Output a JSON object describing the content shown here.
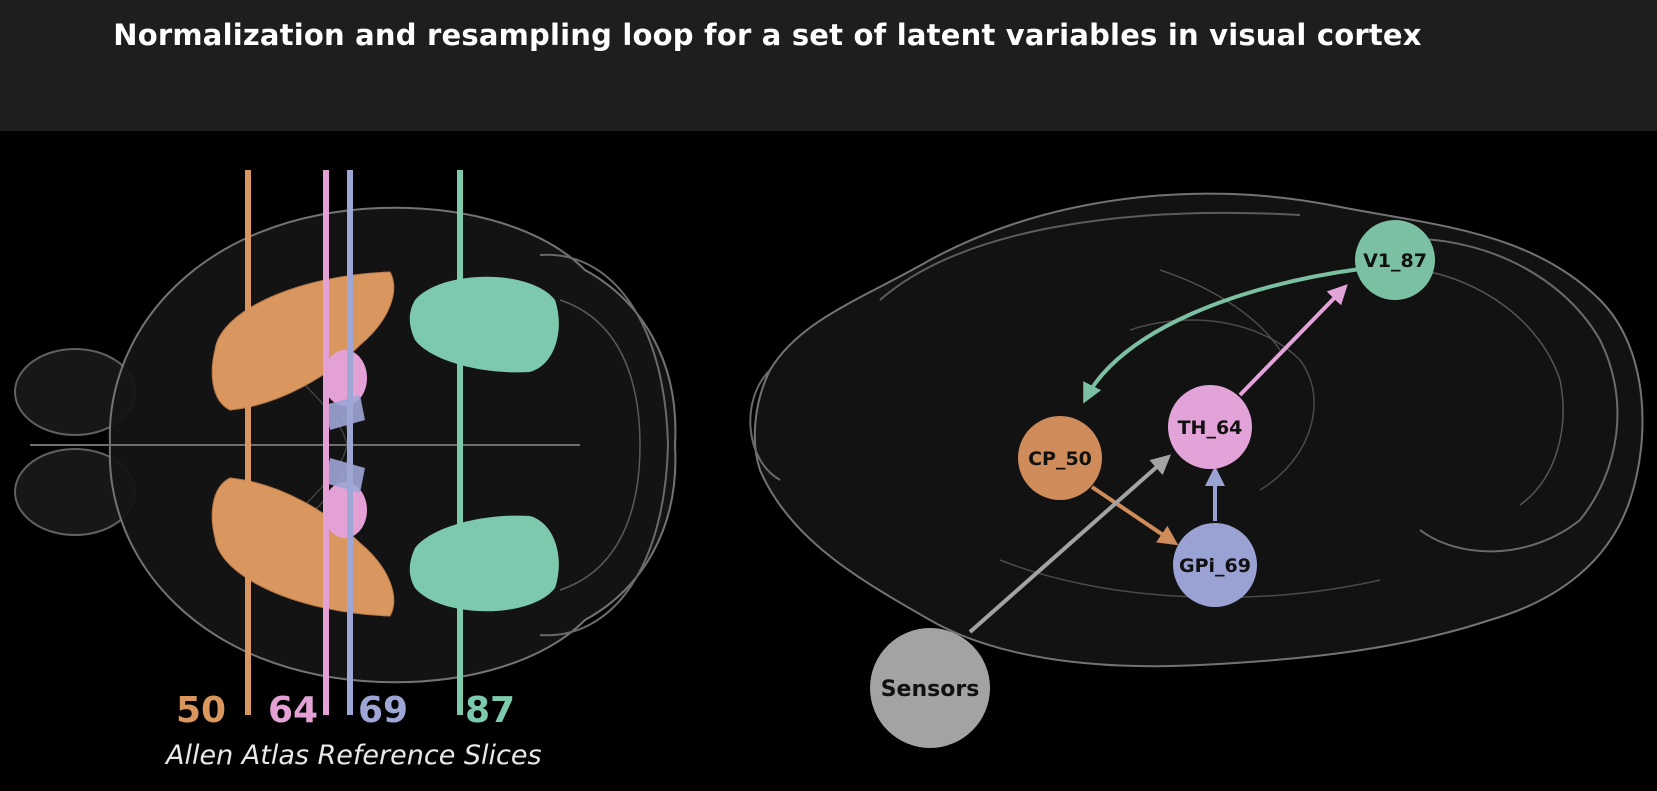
{
  "title": "Normalization and resampling loop for a set of latent variables in visual cortex",
  "caption": "Allen Atlas Reference Slices",
  "slices": [
    {
      "label": "50",
      "color": "#d9975f"
    },
    {
      "label": "64",
      "color": "#e3a1d6"
    },
    {
      "label": "69",
      "color": "#9ea6d6"
    },
    {
      "label": "87",
      "color": "#7cc9ae"
    }
  ],
  "nodes": {
    "v1": {
      "label": "V1_87",
      "color": "#7cc0a4"
    },
    "th": {
      "label": "TH_64",
      "color": "#e2a3d8"
    },
    "cp": {
      "label": "CP_50",
      "color": "#cf8c5a"
    },
    "gpi": {
      "label": "GPi_69",
      "color": "#9aa2d3"
    },
    "sensors": {
      "label": "Sensors",
      "color": "#a3a3a3"
    }
  },
  "edges": [
    {
      "from": "V1_87",
      "to": "CP_50",
      "color": "#7cc0a4"
    },
    {
      "from": "TH_64",
      "to": "V1_87",
      "color": "#e2a3d8"
    },
    {
      "from": "CP_50",
      "to": "GPi_69",
      "color": "#cf8c5a"
    },
    {
      "from": "GPi_69",
      "to": "TH_64",
      "color": "#9aa2d3"
    },
    {
      "from": "Sensors",
      "to": "TH_64",
      "color": "#a3a3a3"
    }
  ]
}
